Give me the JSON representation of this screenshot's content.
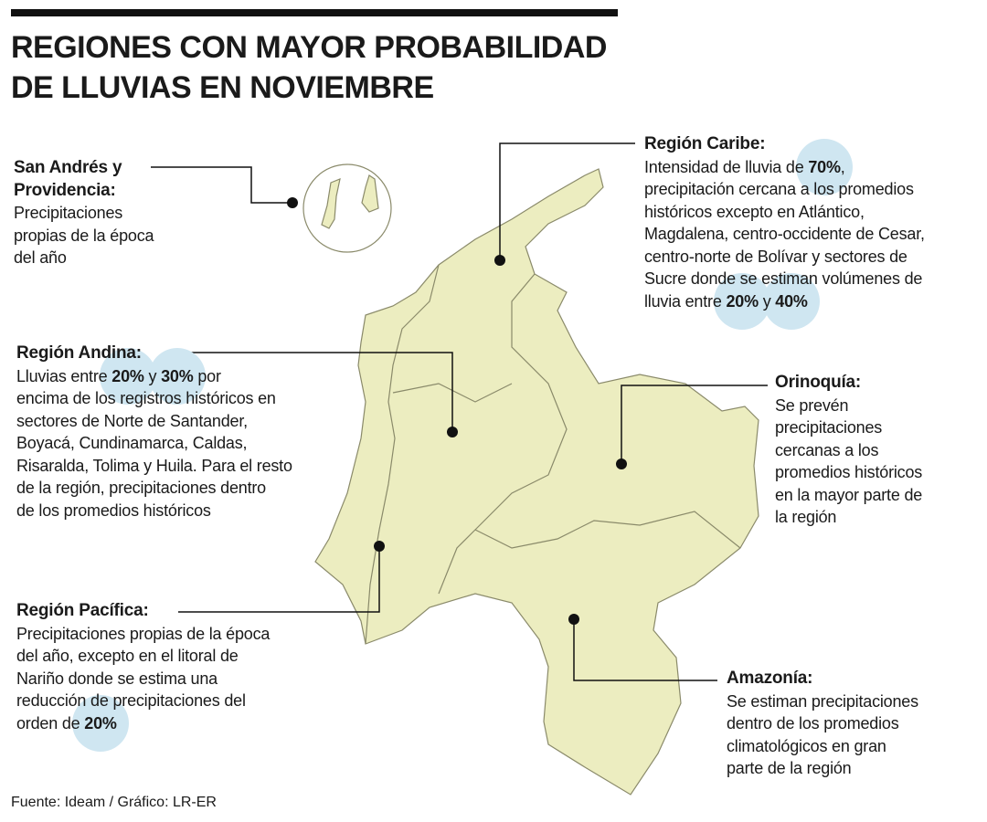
{
  "title": [
    "REGIONES CON MAYOR PROBABILIDAD",
    "DE LLUVIAS EN NOVIEMBRE"
  ],
  "regions": [
    {
      "name": "San Andrés y Providencia:",
      "lines": [
        [
          "Precipitaciones"
        ],
        [
          "propias de la época"
        ],
        [
          "del año"
        ]
      ]
    },
    {
      "name": "Región Caribe:",
      "lines": [
        [
          "Intensidad de lluvia de ",
          {
            "text": "70%",
            "highlight": true
          },
          ","
        ],
        [
          "precipitación cercana a los promedios"
        ],
        [
          "históricos excepto en Atlántico,"
        ],
        [
          "Magdalena, centro-occidente de Cesar,"
        ],
        [
          "centro-norte de Bolívar y sectores de"
        ],
        [
          "Sucre donde se estiman volúmenes de"
        ],
        [
          "lluvia entre ",
          {
            "text": "20%",
            "highlight": true
          },
          " y ",
          {
            "text": "40%",
            "highlight": true
          }
        ]
      ]
    },
    {
      "name": "Región Andina:",
      "lines": [
        [
          "Lluvias entre ",
          {
            "text": "20%",
            "highlight": true
          },
          " y ",
          {
            "text": "30%",
            "highlight": true
          },
          " por"
        ],
        [
          "encima de los registros históricos en"
        ],
        [
          "sectores de Norte de Santander,"
        ],
        [
          "Boyacá, Cundinamarca, Caldas,"
        ],
        [
          "Risaralda, Tolima y Huila. Para el resto"
        ],
        [
          "de la región, precipitaciones dentro"
        ],
        [
          "de los promedios históricos"
        ]
      ]
    },
    {
      "name": "Orinoquía:",
      "lines": [
        [
          "Se prevén"
        ],
        [
          "precipitaciones"
        ],
        [
          "cercanas a los"
        ],
        [
          "promedios históricos"
        ],
        [
          "en la mayor parte de"
        ],
        [
          "la región"
        ]
      ]
    },
    {
      "name": "Región Pacífica:",
      "lines": [
        [
          "Precipitaciones propias de la época"
        ],
        [
          "del año, excepto en el litoral de"
        ],
        [
          "Nariño donde se estima una"
        ],
        [
          "reducción de precipitaciones del"
        ],
        [
          "orden de ",
          {
            "text": "20%",
            "highlight": true
          }
        ]
      ]
    },
    {
      "name": "Amazonía:",
      "lines": [
        [
          "Se estiman precipitaciones"
        ],
        [
          "dentro de los promedios"
        ],
        [
          "climatológicos en gran"
        ],
        [
          "parte de la región"
        ]
      ]
    }
  ],
  "source": "Fuente: Ideam / Gráfico: LR-ER"
}
